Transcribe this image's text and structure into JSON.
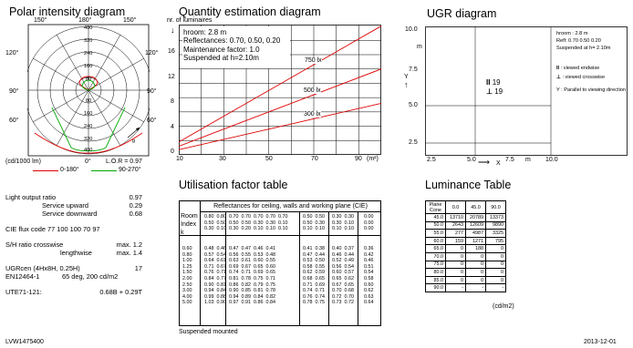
{
  "polar": {
    "title": "Polar intensity diagram",
    "top_labels": [
      "150°",
      "180°",
      "150°"
    ],
    "side_labels_left": [
      "120°",
      "90°",
      "60°"
    ],
    "side_labels_right": [
      "120°",
      "90°",
      "60°"
    ],
    "radial_labels": [
      "400",
      "320",
      "240",
      "160",
      "80",
      "80",
      "160",
      "240",
      "320",
      "400"
    ],
    "bottom_left": "(cd/1000 lm)",
    "bottom_mid": "0°",
    "lor": "L.O.R = 0.97",
    "legend": [
      {
        "label": "0-180°",
        "color": "#e00000"
      },
      {
        "label": "90-270°",
        "color": "#00aa00"
      }
    ],
    "gamma_label": "g"
  },
  "quantity": {
    "title": "Quantity estimation diagram",
    "ylabel": "nr. of luminaires",
    "info": [
      "hroom: 2.8 m",
      "Reflectances: 0.70, 0.50, 0.20",
      "Maintenance factor: 1.0",
      "Suspended at h=2.10m"
    ],
    "y_ticks": [
      "16",
      "12",
      "8",
      "4",
      "0"
    ],
    "x_ticks": [
      "10",
      "30",
      "50",
      "70",
      "90"
    ],
    "x_unit": "(m²)",
    "curves": [
      {
        "label": "750 lx",
        "x": [
          10,
          100
        ],
        "y": [
          1.8,
          18
        ]
      },
      {
        "label": "500 lx",
        "x": [
          10,
          100
        ],
        "y": [
          1.2,
          12
        ]
      },
      {
        "label": "300 lx",
        "x": [
          10,
          100
        ],
        "y": [
          0.72,
          7.2
        ]
      }
    ]
  },
  "ugr": {
    "title": "UGR diagram",
    "y_ticks": [
      "10.0",
      "7.5",
      "5.0",
      "2.5"
    ],
    "x_ticks": [
      "2.5",
      "5.0",
      "7.5",
      "10.0"
    ],
    "y_unit": "m",
    "x_unit": "m",
    "y_axis": "Y",
    "x_axis": "X",
    "info": [
      "hroom : 2.8 m",
      "Refl: 0.70 0.50 0.20",
      "Suspended at h= 2.10m"
    ],
    "legend": [
      ": viewed endwise",
      ": viewed crosswise",
      "Y  : Parallel to viewing direction"
    ],
    "values": [
      "19",
      "19"
    ]
  },
  "utilisation": {
    "title": "Utilisation factor table",
    "header": "Reflectances for ceiling, walls and working plane (CIE)",
    "room_index_label": [
      "Room",
      "Index",
      "k"
    ],
    "refl_cols": [
      "0.80  0.80\n0.50  0.50\n0.30  0.10",
      "0.70  0.70  0.70  0.70  0.70\n0.50  0.50  0.30  0.30  0.10\n0.30  0.20  0.10  0.10  0.10",
      "0.50  0.50\n0.50  0.30\n0.10  0.10",
      "0.30  0.30\n0.30  0.10\n0.10  0.10",
      "0.00\n0.00\n0.00"
    ],
    "k": "0.60\n0.80\n1.00\n1.25\n1.50\n2.00\n2.50\n3.00\n4.00\n5.00",
    "c1": "0.48  0.46\n0.57  0.54\n0.64  0.61\n0.71  0.67\n0.76  0.71\n0.84  0.77\n0.90  0.81\n0.94  0.84\n0.99  0.88\n1.03  0.90",
    "c2": "0.47  0.47  0.46  0.41\n0.56  0.55  0.53  0.48\n0.63  0.61  0.60  0.55\n0.69  0.67  0.65  0.60\n0.74  0.71  0.69  0.65\n0.81  0.78  0.75  0.71\n0.86  0.82  0.79  0.75\n0.90  0.85  0.81  0.78\n0.94  0.89  0.84  0.82\n0.97  0.91  0.86  0.84",
    "c3": "0.41  0.38\n0.47  0.44\n0.53  0.50\n0.58  0.55\n0.62  0.59\n0.68  0.65\n0.71  0.69\n0.74  0.71\n0.76  0.74\n0.78  0.75",
    "c4": "0.40  0.37\n0.46  0.44\n0.52  0.49\n0.56  0.54\n0.60  0.57\n0.65  0.62\n0.67  0.65\n0.70  0.68\n0.72  0.70\n0.73  0.72",
    "c5": "0.36\n0.42\n0.46\n0.51\n0.54\n0.58\n0.60\n0.62\n0.63\n0.64",
    "footer": "Suspended mounted"
  },
  "luminance": {
    "title": "Luminance Table",
    "head": [
      "Plane\nCone",
      "0.0",
      "45.0",
      "90.0"
    ],
    "rows": [
      [
        "45.0",
        "13710",
        "20789",
        "13373"
      ],
      [
        "50.0",
        "2643",
        "12609",
        "9890"
      ],
      [
        "55.0",
        "277",
        "4987",
        "3325"
      ],
      [
        "60.0",
        "159",
        "1271",
        "795"
      ],
      [
        "65.0",
        "0",
        "188",
        "0"
      ],
      [
        "70.0",
        "0",
        "0",
        "0"
      ],
      [
        "75.0",
        "0",
        "0",
        "0"
      ],
      [
        "80.0",
        "0",
        "0",
        "0"
      ],
      [
        "85.0",
        "0",
        "0",
        "0"
      ],
      [
        "90.0",
        "-",
        "-",
        "-"
      ]
    ],
    "unit": "(cd/m2)"
  },
  "specs": {
    "lor_label": "Light output ratio",
    "lor": "0.97",
    "up_label": "Service upward",
    "up": "0.29",
    "down_label": "Service downward",
    "down": "0.68",
    "cie": "CIE flux code     77 100 100 70 97",
    "sh1_label": "S/H ratio crosswise",
    "sh1": "max. 1.2",
    "sh2_label": "lengthwise",
    "sh2": "max. 1.4",
    "ugr_label": "UGRcen (4Hx8H, 0.25H)",
    "ugr": "17",
    "en_label": "EN12464-1",
    "en": "65 deg, 200 cd/m2",
    "ute_label": "UTE71-121:",
    "ute": "0.68B + 0.29T"
  },
  "footer": {
    "code": "LVW1475400",
    "date": "2013-12-01"
  }
}
